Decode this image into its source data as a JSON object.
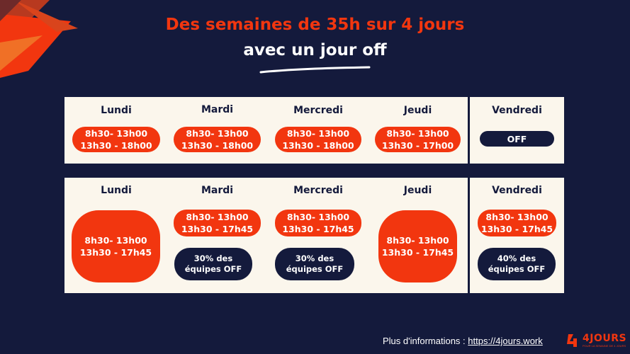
{
  "title": {
    "line1": "Des semaines de 35h sur 4 jours",
    "line2": "avec un jour off"
  },
  "row1": [
    {
      "day": "Lundi",
      "h1": "8h30- 13h00",
      "h2": "13h30 - 18h00"
    },
    {
      "day": "Mardi",
      "h1": "8h30- 13h00",
      "h2": "13h30 - 18h00"
    },
    {
      "day": "Mercredi",
      "h1": "8h30- 13h00",
      "h2": "13h30 - 18h00"
    },
    {
      "day": "Jeudi",
      "h1": "8h30- 13h00",
      "h2": "13h30 - 17h00"
    },
    {
      "day": "Vendredi",
      "off": "OFF"
    }
  ],
  "row2": [
    {
      "day": "Lundi",
      "h1": "8h30- 13h00",
      "h2": "13h30 - 17h45"
    },
    {
      "day": "Mardi",
      "h1": "8h30- 13h00",
      "h2": "13h30 - 17h45",
      "note1": "30% des",
      "note2": "équipes OFF"
    },
    {
      "day": "Mercredi",
      "h1": "8h30- 13h00",
      "h2": "13h30 - 17h45",
      "note1": "30% des",
      "note2": "équipes OFF"
    },
    {
      "day": "Jeudi",
      "h1": "8h30- 13h00",
      "h2": "13h30 - 17h45"
    },
    {
      "day": "Vendredi",
      "h1": "8h30- 13h00",
      "h2": "13h30 - 17h45",
      "note1": "40% des",
      "note2": "équipes OFF"
    }
  ],
  "footer": {
    "label": "Plus d'informations : ",
    "link": "https://4jours.work"
  },
  "logo": {
    "text": "4JOURS",
    "sub": "POUR LA SEMAINE DE 4 JOURS"
  },
  "colors": {
    "background": "#141a3c",
    "accent": "#f2360f",
    "card": "#fbf6ec"
  }
}
